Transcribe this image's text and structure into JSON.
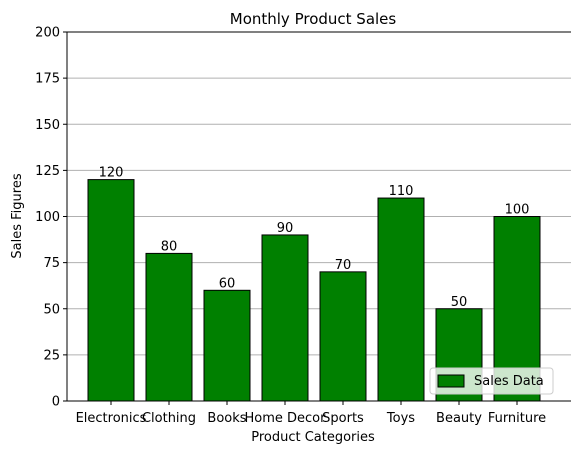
{
  "chart_data": {
    "type": "bar",
    "title": "Monthly Product Sales",
    "xlabel": "Product Categories",
    "ylabel": "Sales Figures",
    "categories": [
      "Electronics",
      "Clothing",
      "Books",
      "Home Decor",
      "Sports",
      "Toys",
      "Beauty",
      "Furniture"
    ],
    "series": [
      {
        "name": "Sales Data",
        "values": [
          120,
          80,
          60,
          90,
          70,
          110,
          50,
          100
        ]
      }
    ],
    "ylim": [
      0,
      200
    ],
    "yticks": [
      0,
      25,
      50,
      75,
      100,
      125,
      150,
      175,
      200
    ],
    "grid": {
      "y": true,
      "x": false
    },
    "legend": {
      "position": "lower-right"
    },
    "data_labels": true,
    "colors": {
      "bar": "#008000",
      "bar_edge": "#000000",
      "grid": "#b0b0b0"
    }
  }
}
